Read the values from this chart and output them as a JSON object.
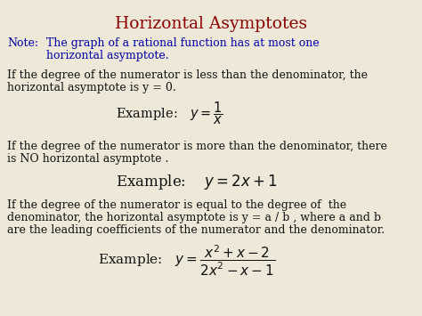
{
  "title": "Horizontal Asymptotes",
  "title_color": "#8B0000",
  "note_label": "Note:",
  "note_color": "#0000AA",
  "note_line1": "The graph of a rational function has at most one",
  "note_line2": "horizontal asymptote.",
  "block1_line1": "If the degree of the numerator is less than the denominator, the",
  "block1_line2": "horizontal asymptote is y = 0.",
  "block1_example": "Example:   $y = \\dfrac{1}{x}$",
  "block2_line1": "If the degree of the numerator is more than the denominator, there",
  "block2_line2": "is NO horizontal asymptote .",
  "block2_example": "Example:    $y = 2x+1$",
  "block3_line1": "If the degree of the numerator is equal to the degree of  the",
  "block3_line2": "denominator, the horizontal asymptote is y = a / b , where a and b",
  "block3_line3": "are the leading coefficients of the numerator and the denominator.",
  "block3_example": "Example:   $y = \\dfrac{x^2+x-2}{2x^2-x-1}$",
  "bg_color": "#ede8d8",
  "text_color": "#111111",
  "body_fontsize": 9.0,
  "title_fontsize": 13.5,
  "note_fontsize": 9.0,
  "formula_fontsize": 10.5
}
